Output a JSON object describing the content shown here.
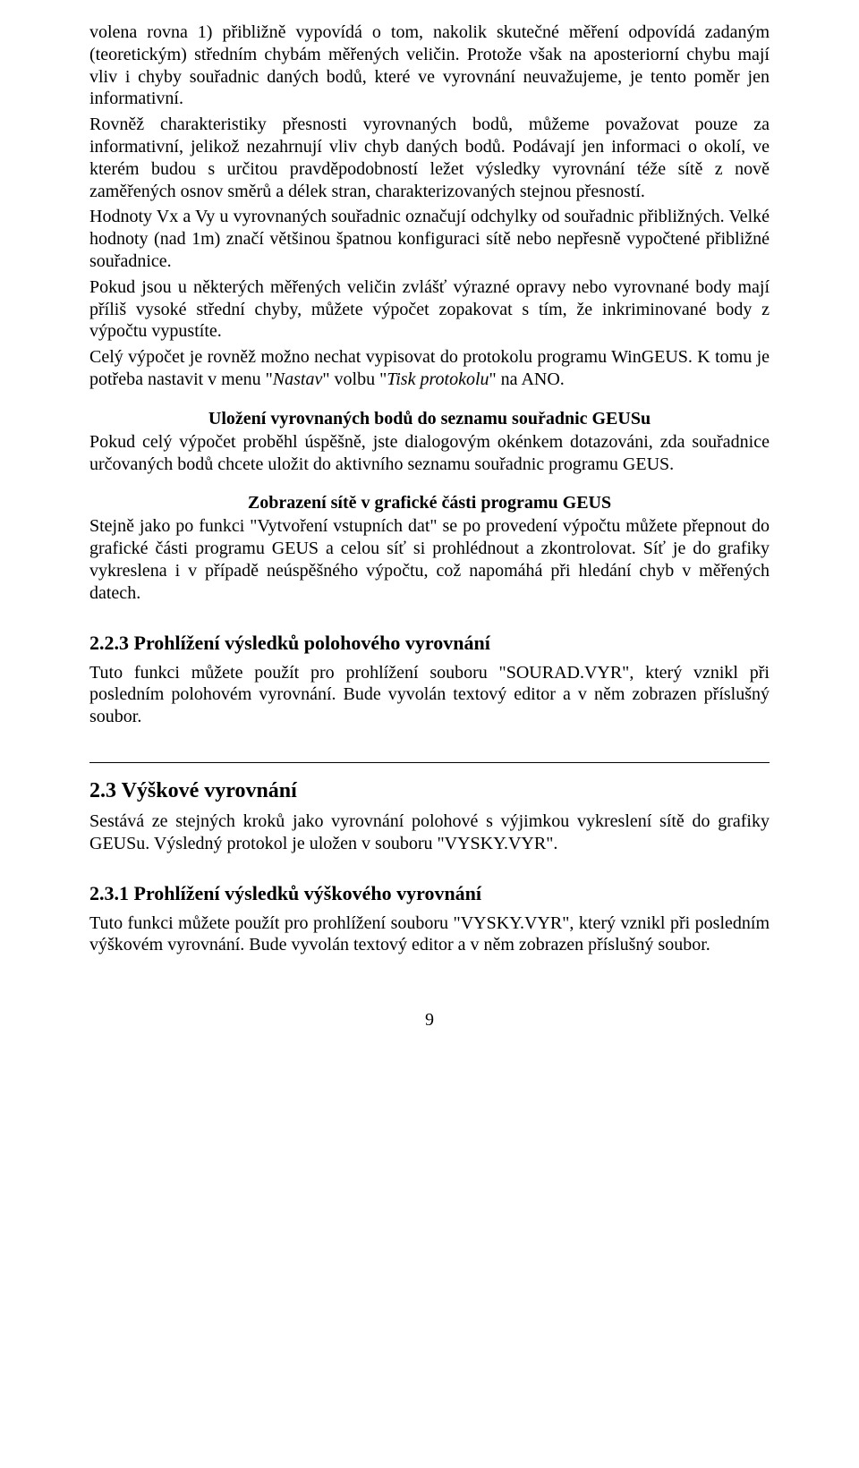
{
  "para1": "volena rovna 1) přibližně vypovídá o tom, nakolik skutečné měření odpovídá zadaným (teoretickým) středním chybám měřených veličin. Protože však na aposteriorní chybu mají vliv i chyby souřadnic daných bodů, které ve vyrovnání neuvažujeme, je tento poměr jen informativní.",
  "para2": "Rovněž charakteristiky přesnosti vyrovnaných bodů, můžeme považovat pouze za informativní, jelikož nezahrnují vliv chyb daných bodů. Podávají jen informaci o okolí, ve kterém budou s určitou pravděpodobností ležet výsledky vyrovnání téže sítě z nově zaměřených osnov směrů a délek stran, charakterizovaných stejnou přesností.",
  "para3": "Hodnoty Vx a Vy u vyrovnaných souřadnic označují odchylky od souřadnic přibližných. Velké hodnoty (nad 1m) značí většinou špatnou konfiguraci sítě nebo nepřesně vypočtené přibližné souřadnice.",
  "para4": "Pokud jsou u některých měřených veličin zvlášť výrazné opravy nebo vyrovnané body mají příliš vysoké střední chyby, můžete výpočet zopakovat s tím, že inkriminované body z výpočtu vypustíte.",
  "para5a": "Celý výpočet je rovněž možno nechat vypisovat do protokolu programu WinGEUS. K tomu je potřeba nastavit v menu \"",
  "para5b": "Nastav",
  "para5c": "\" volbu \"",
  "para5d": "Tisk protokolu",
  "para5e": "\" na ANO.",
  "heading1": "Uložení vyrovnaných bodů do seznamu souřadnic GEUSu",
  "para6": "Pokud celý výpočet proběhl úspěšně, jste dialogovým okénkem dotazováni, zda souřadnice určovaných bodů chcete uložit do aktivního seznamu souřadnic programu GEUS.",
  "heading2": "Zobrazení sítě v grafické části programu GEUS",
  "para7": "Stejně jako po funkci \"Vytvoření vstupních dat\" se po provedení výpočtu můžete přepnout do grafické části programu GEUS a celou síť si prohlédnout a zkontrolovat. Síť je do grafiky vykreslena i v případě neúspěšného výpočtu, což napomáhá při hledání chyb v měřených datech.",
  "h3_223": "2.2.3   Prohlížení výsledků polohového vyrovnání",
  "para8": "Tuto funkci můžete použít pro prohlížení souboru \"SOURAD.VYR\", který vznikl při posledním polohovém vyrovnání. Bude vyvolán textový editor a v něm zobrazen příslušný soubor.",
  "h2_23": "2.3   Výškové vyrovnání",
  "para9": "Sestává ze stejných kroků jako vyrovnání polohové s výjimkou vykreslení sítě do grafiky GEUSu. Výsledný protokol je uložen v souboru \"VYSKY.VYR\".",
  "h3_231": "2.3.1   Prohlížení výsledků výškového vyrovnání",
  "para10": "Tuto funkci můžete použít pro prohlížení souboru \"VYSKY.VYR\", který vznikl při posledním výškovém vyrovnání. Bude vyvolán textový editor a v něm zobrazen příslušný soubor.",
  "pageNumber": "9"
}
